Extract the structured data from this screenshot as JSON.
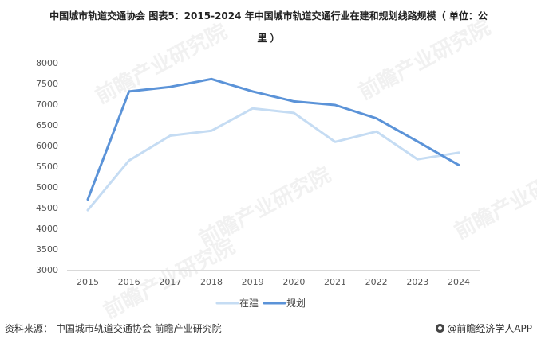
{
  "title_line1": "中国城市轨道交通协会  图表5：2015-2024 年中国城市轨道交通行业在建和规划线路规模（ 单位：公",
  "title_line2": "里 ）",
  "source": "资料来源： 中国城市轨道交通协会 前瞻产业研究院",
  "brand": "@前瞻经济学人APP",
  "watermark": "前瞻产业研究院",
  "colors": {
    "series_in_construction": "#c5dcf3",
    "series_planned": "#5b93d8",
    "grid": "#e6e6e6",
    "axis_text": "#555555"
  },
  "chart_data": {
    "type": "line",
    "x": [
      "2015",
      "2016",
      "2017",
      "2018",
      "2019",
      "2020",
      "2021",
      "2022",
      "2023",
      "2024"
    ],
    "series": [
      {
        "name": "在建",
        "values": [
          4440,
          5640,
          6240,
          6360,
          6900,
          6790,
          6090,
          6340,
          5670,
          5830
        ]
      },
      {
        "name": "规划",
        "values": [
          4700,
          7310,
          7420,
          7610,
          7310,
          7070,
          6980,
          6660,
          6100,
          5530
        ]
      }
    ],
    "ylim": [
      3000,
      8000
    ],
    "yticks": [
      3000,
      3500,
      4000,
      4500,
      5000,
      5500,
      6000,
      6500,
      7000,
      7500,
      8000
    ],
    "grid": false,
    "legend": "bottom-center"
  }
}
